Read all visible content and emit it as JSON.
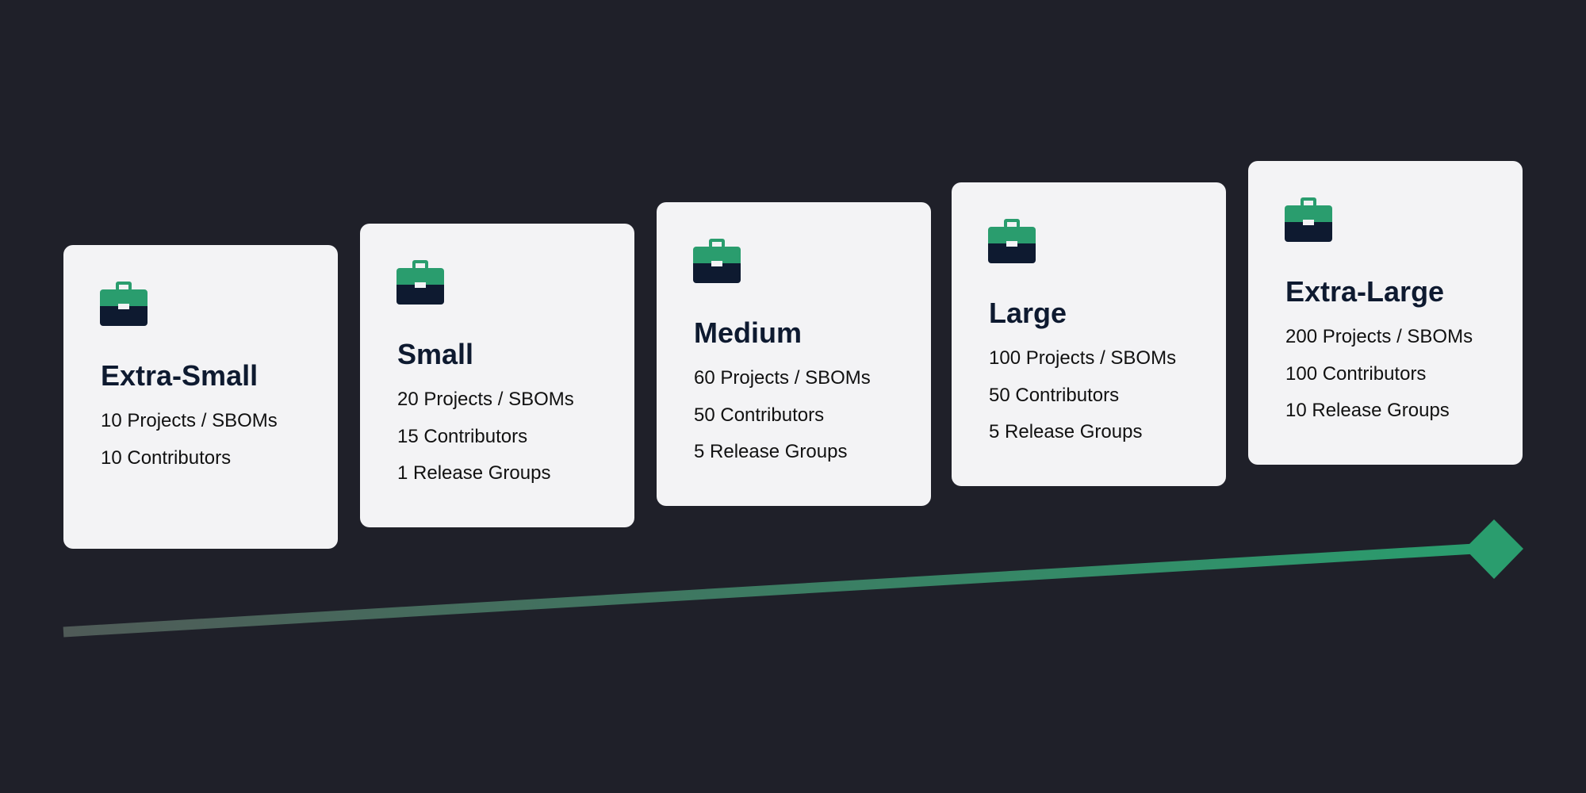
{
  "colors": {
    "background": "#1f2029",
    "card": "#f3f3f5",
    "accent": "#2a9d6e",
    "icon_dark": "#0e1a30",
    "line_start": "#4f5a57"
  },
  "tiers": [
    {
      "icon": "briefcase-icon",
      "title": "Extra-Small",
      "lines": [
        "10 Projects / SBOMs",
        "10 Contributors"
      ]
    },
    {
      "icon": "briefcase-icon",
      "title": "Small",
      "lines": [
        "20 Projects / SBOMs",
        "15 Contributors",
        "1 Release Groups"
      ]
    },
    {
      "icon": "briefcase-icon",
      "title": "Medium",
      "lines": [
        "60 Projects / SBOMs",
        "50 Contributors",
        "5 Release Groups"
      ]
    },
    {
      "icon": "briefcase-icon",
      "title": "Large",
      "lines": [
        "100 Projects / SBOMs",
        "50 Contributors",
        "5 Release Groups"
      ]
    },
    {
      "icon": "briefcase-icon",
      "title": "Extra-Large",
      "lines": [
        "200 Projects / SBOMs",
        "100 Contributors",
        "10 Release Groups"
      ]
    }
  ]
}
